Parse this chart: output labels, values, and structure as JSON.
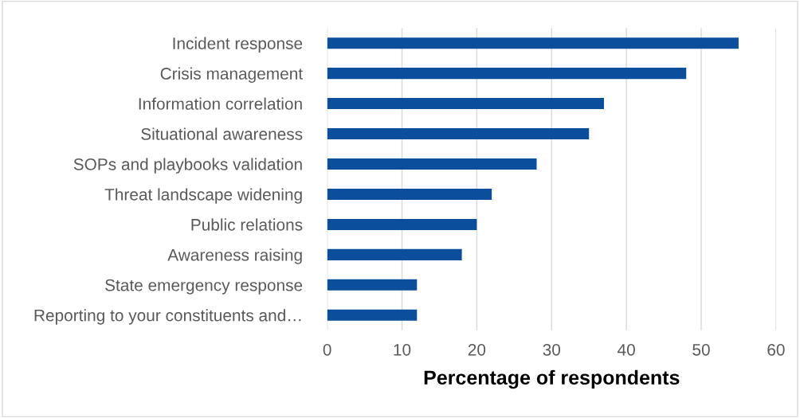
{
  "chart_data": {
    "type": "bar",
    "orientation": "horizontal",
    "xlabel": "Percentage of respondents",
    "categories": [
      "Incident response",
      "Crisis management",
      "Information correlation",
      "Situational awareness",
      "SOPs and playbooks validation",
      "Threat landscape widening",
      "Public relations",
      "Awareness raising",
      "State emergency response",
      "Reporting to your constituents and…"
    ],
    "values": [
      55,
      48,
      37,
      35,
      28,
      22,
      20,
      18,
      12,
      12
    ],
    "color": "#0b4f9c",
    "xlim": [
      0,
      60
    ],
    "xticks": [
      0,
      10,
      20,
      30,
      40,
      50,
      60
    ],
    "grid": "x",
    "legend": false
  }
}
